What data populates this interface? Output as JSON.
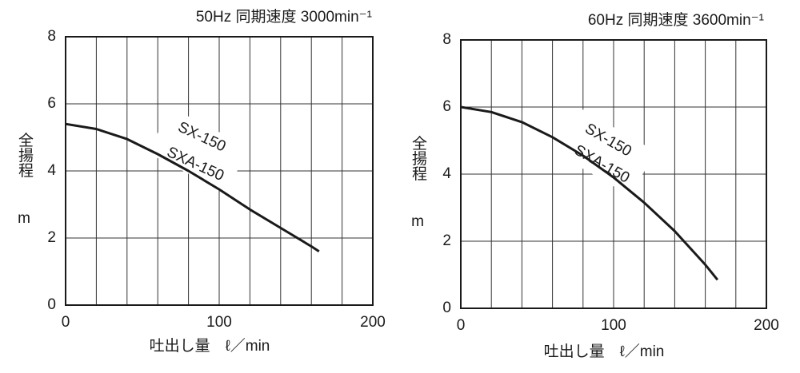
{
  "chart_data": [
    {
      "type": "line",
      "title": "50Hz 同期速度 3000min⁻¹",
      "x_label": "吐出し量　ℓ／min",
      "y_label": "全揚程",
      "y_unit": "m",
      "x": [
        0,
        20,
        40,
        60,
        80,
        100,
        120,
        140,
        160,
        165
      ],
      "series": [
        {
          "color": "#1a1a1a",
          "values": [
            5.4,
            5.25,
            4.95,
            4.5,
            4.0,
            3.45,
            2.85,
            2.3,
            1.75,
            1.6
          ]
        }
      ],
      "annotations": [
        "SX-150",
        "SXA-150"
      ],
      "xlim": [
        0,
        200
      ],
      "ylim": [
        0,
        8
      ],
      "xticks": [
        0,
        100,
        200
      ],
      "yticks": [
        0,
        2,
        4,
        6,
        8
      ],
      "xminorticks": [
        20,
        40,
        60,
        80,
        120,
        140,
        160,
        180
      ],
      "grid": true
    },
    {
      "type": "line",
      "title": "60Hz 同期速度 3600min⁻¹",
      "x_label": "吐出し量　ℓ／min",
      "y_label": "全揚程",
      "y_unit": "m",
      "x": [
        0,
        20,
        40,
        60,
        80,
        100,
        120,
        140,
        160,
        168
      ],
      "series": [
        {
          "color": "#1a1a1a",
          "values": [
            6.0,
            5.85,
            5.55,
            5.1,
            4.55,
            3.9,
            3.15,
            2.3,
            1.3,
            0.85
          ]
        }
      ],
      "annotations": [
        "SX-150",
        "SXA-150"
      ],
      "xlim": [
        0,
        200
      ],
      "ylim": [
        0,
        8
      ],
      "xticks": [
        0,
        100,
        200
      ],
      "yticks": [
        0,
        2,
        4,
        6,
        8
      ],
      "xminorticks": [
        20,
        40,
        60,
        80,
        120,
        140,
        160,
        180
      ],
      "grid": true
    }
  ]
}
